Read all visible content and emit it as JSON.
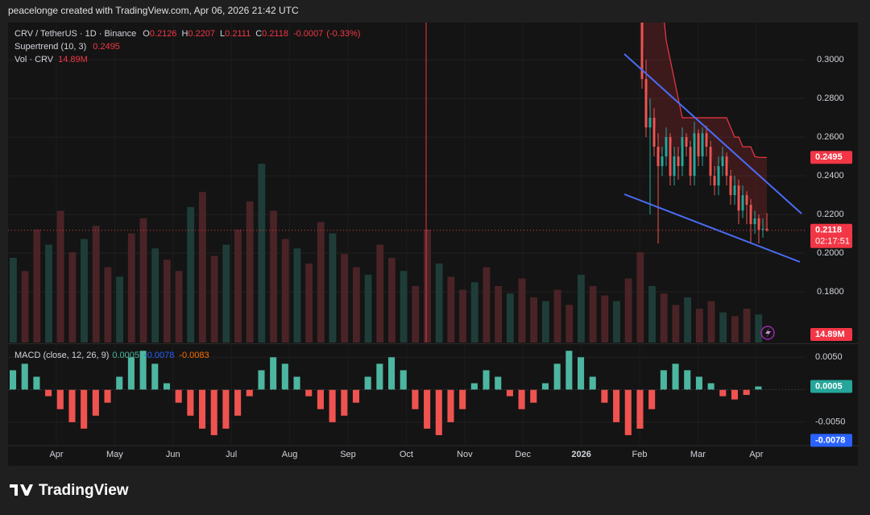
{
  "header": "peacelonge created with TradingView.com, Apr 06, 2026 21:42 UTC",
  "footer": "TradingView",
  "chart_data": [
    {
      "type": "candlestick",
      "title": "CRV / TetherUS · 1D · Binance",
      "ohlc_labels": [
        "O",
        "H",
        "L",
        "C"
      ],
      "ohlc": [
        0.2126,
        0.2207,
        0.2111,
        0.2118
      ],
      "change": -0.0007,
      "change_pct": "(-0.33%)",
      "open": [
        0.32,
        0.29,
        0.265,
        0.27,
        0.255,
        0.245,
        0.25,
        0.26,
        0.24,
        0.25,
        0.245,
        0.26,
        0.255,
        0.24,
        0.262,
        0.25,
        0.262,
        0.255,
        0.24,
        0.235,
        0.245,
        0.25,
        0.24,
        0.23,
        0.235,
        0.222,
        0.23,
        0.225,
        0.215,
        0.218,
        0.212,
        0.2126
      ],
      "high": [
        0.325,
        0.3,
        0.28,
        0.275,
        0.262,
        0.255,
        0.265,
        0.262,
        0.255,
        0.255,
        0.265,
        0.262,
        0.258,
        0.268,
        0.264,
        0.265,
        0.266,
        0.258,
        0.245,
        0.25,
        0.255,
        0.252,
        0.243,
        0.24,
        0.238,
        0.235,
        0.232,
        0.228,
        0.222,
        0.22,
        0.218,
        0.2207
      ],
      "low": [
        0.285,
        0.26,
        0.22,
        0.25,
        0.205,
        0.24,
        0.245,
        0.235,
        0.235,
        0.238,
        0.24,
        0.25,
        0.235,
        0.235,
        0.245,
        0.245,
        0.25,
        0.235,
        0.23,
        0.23,
        0.24,
        0.235,
        0.225,
        0.225,
        0.215,
        0.218,
        0.215,
        0.205,
        0.21,
        0.205,
        0.208,
        0.2111
      ],
      "close": [
        0.29,
        0.265,
        0.27,
        0.255,
        0.245,
        0.25,
        0.26,
        0.24,
        0.25,
        0.245,
        0.26,
        0.255,
        0.24,
        0.262,
        0.25,
        0.262,
        0.255,
        0.24,
        0.235,
        0.245,
        0.25,
        0.24,
        0.23,
        0.235,
        0.222,
        0.23,
        0.225,
        0.215,
        0.218,
        0.212,
        0.2126,
        0.2118
      ],
      "up_color": "#26a69a",
      "down_color": "#ef5350",
      "supertrend": {
        "name": "Supertrend (10, 3)",
        "color": "#f23645",
        "values": [
          0.33,
          0.33,
          0.33,
          0.33,
          0.33,
          0.33,
          0.31,
          0.3,
          0.29,
          0.28,
          0.27,
          0.27,
          0.27,
          0.27,
          0.27,
          0.27,
          0.27,
          0.27,
          0.27,
          0.27,
          0.27,
          0.27,
          0.265,
          0.26,
          0.26,
          0.255,
          0.255,
          0.255,
          0.25,
          0.2495,
          0.2495,
          0.2495
        ]
      },
      "countdown": "02:17:51",
      "ylim": [
        0.1538,
        0.3192
      ],
      "yticks": [
        {
          "value": 0.18,
          "label": "0.1800"
        },
        {
          "value": 0.2,
          "label": "0.2000"
        },
        {
          "value": 0.22,
          "label": "0.2200"
        },
        {
          "value": 0.24,
          "label": "0.2400"
        },
        {
          "value": 0.26,
          "label": "0.2600"
        },
        {
          "value": 0.28,
          "label": "0.2800"
        },
        {
          "value": 0.3,
          "label": "0.3000"
        }
      ],
      "categories": [
        "Apr",
        "May",
        "Jun",
        "Jul",
        "Aug",
        "Sep",
        "Oct",
        "Nov",
        "Dec",
        "2026",
        "Feb",
        "Mar",
        "Apr"
      ]
    },
    {
      "type": "bar",
      "name": "Vol · CRV",
      "color": "#ef5350",
      "values": [
        45,
        38,
        60,
        52,
        70,
        48,
        55,
        62,
        40,
        35,
        58,
        66,
        50,
        44,
        38,
        72,
        80,
        46,
        52,
        60,
        75,
        95,
        70,
        55,
        50,
        42,
        64,
        58,
        47,
        40,
        36,
        52,
        45,
        38,
        30,
        60,
        42,
        35,
        28,
        32,
        40,
        30,
        26,
        34,
        24,
        22,
        28,
        20,
        36,
        30,
        25,
        22,
        34,
        48,
        30,
        26,
        20,
        24,
        18,
        22,
        16,
        14,
        18,
        14.89
      ],
      "last": {
        "value": 14.89,
        "label": "14.89M"
      },
      "ylim": [
        0,
        170
      ]
    },
    {
      "type": "histogram",
      "title": "MACD (close, 12, 26, 9)",
      "pos_color": "#4db6a0",
      "neg_color": "#ef5350",
      "values": [
        0.003,
        0.004,
        0.002,
        -0.001,
        -0.003,
        -0.005,
        -0.006,
        -0.004,
        -0.002,
        0.002,
        0.005,
        0.006,
        0.004,
        0.001,
        -0.002,
        -0.004,
        -0.006,
        -0.007,
        -0.006,
        -0.004,
        -0.001,
        0.003,
        0.005,
        0.004,
        0.002,
        -0.001,
        -0.003,
        -0.005,
        -0.004,
        -0.002,
        0.002,
        0.004,
        0.005,
        0.003,
        -0.003,
        -0.006,
        -0.007,
        -0.005,
        -0.003,
        0.001,
        0.003,
        0.002,
        -0.001,
        -0.003,
        -0.002,
        0.001,
        0.004,
        0.006,
        0.005,
        0.002,
        -0.002,
        -0.005,
        -0.007,
        -0.006,
        -0.003,
        0.003,
        0.004,
        0.003,
        0.002,
        0.001,
        -0.001,
        -0.0015,
        -0.0008,
        0.0005
      ],
      "macd_value": -0.0078,
      "macd_color": "#2962ff",
      "signal_value": -0.0083,
      "signal_color": "#ff6d00",
      "ylim": [
        -0.0085,
        0.0069
      ],
      "yticks": [
        {
          "value": -0.005,
          "label": "-0.0050"
        },
        {
          "value": 0.005,
          "label": "0.0050"
        }
      ]
    }
  ]
}
